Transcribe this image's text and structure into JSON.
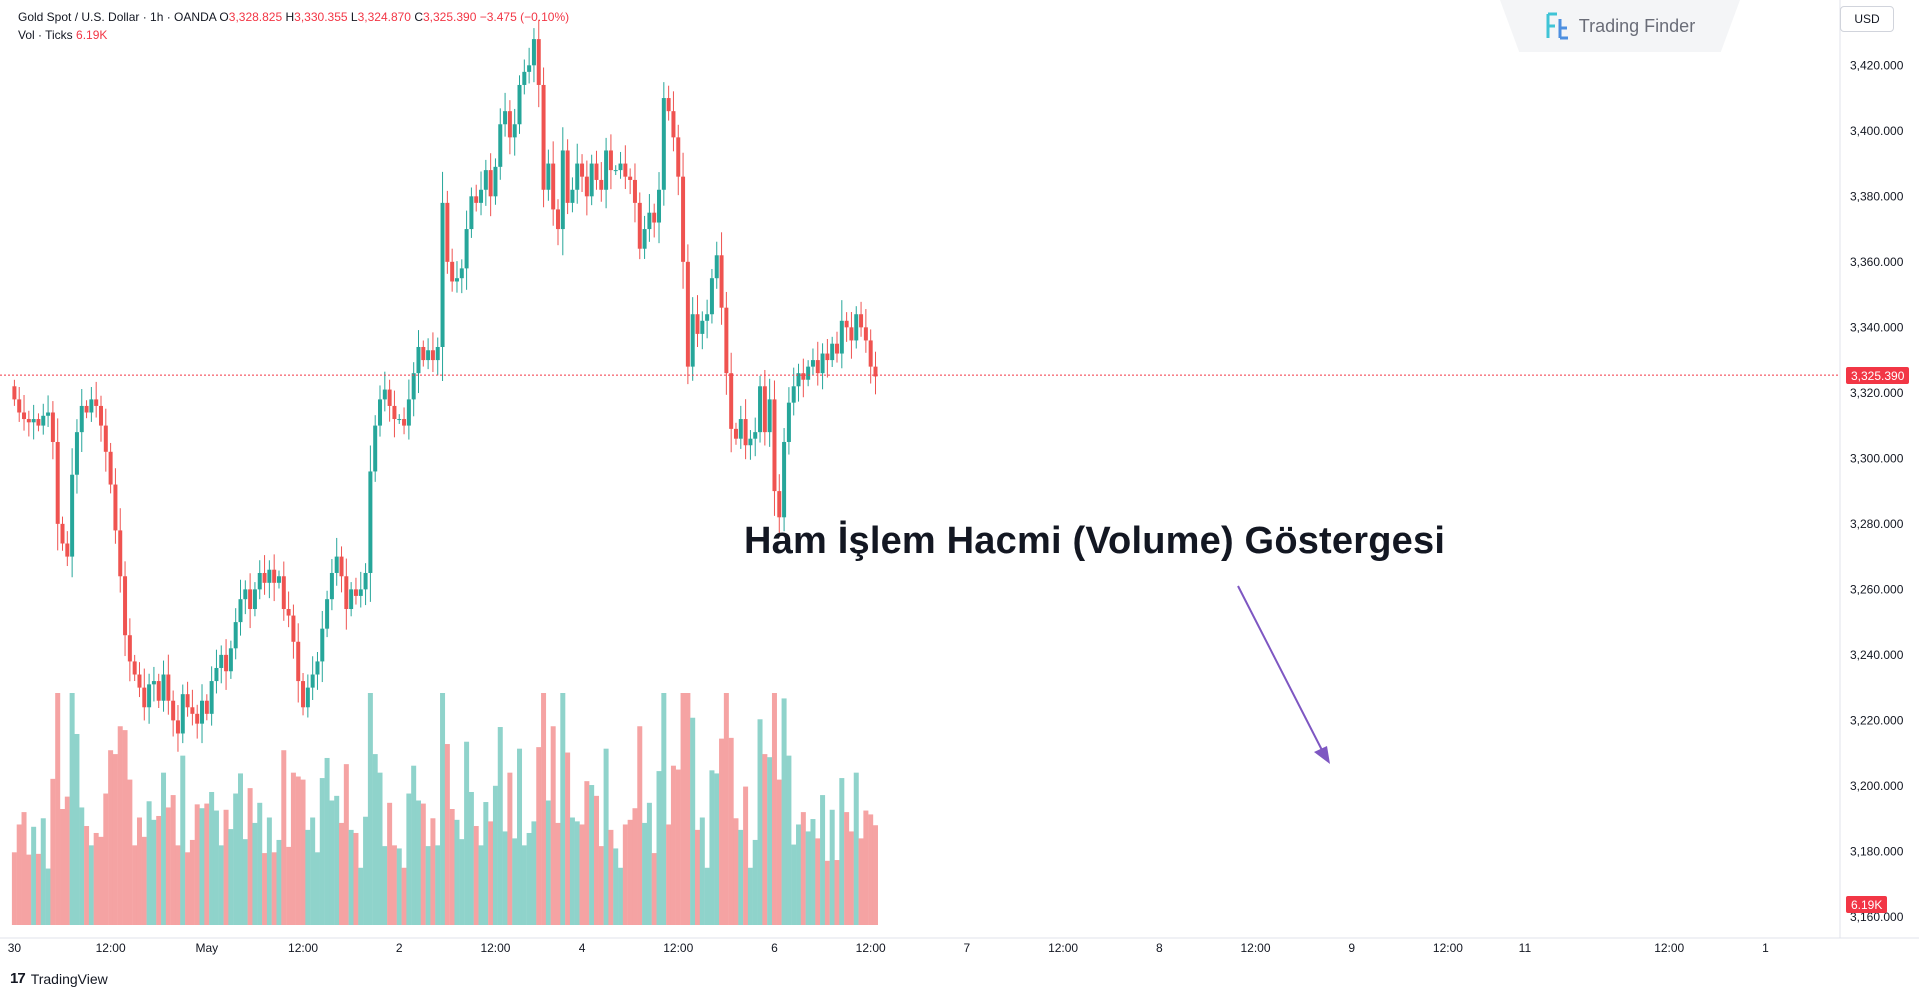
{
  "legend": {
    "symbol": "Gold Spot / U.S. Dollar · 1h · OANDA",
    "o_k": "O",
    "o": "3,328.825",
    "h_k": "H",
    "h": "3,330.355",
    "l_k": "L",
    "l": "3,324.870",
    "c_k": "C",
    "c": "3,325.390",
    "change": "−3.475 (−0.10%)",
    "vol_label": "Vol · Ticks",
    "vol_value": "6.19K"
  },
  "brand": {
    "name": "Trading Finder",
    "icon": "tf-logo-icon"
  },
  "currency_button": "USD",
  "annotation": "Ham İşlem Hacmi (Volume) Göstergesi",
  "footer": {
    "logo": "17",
    "name": "TradingView"
  },
  "price_tag": "3,325.390",
  "volume_tag": "6.19K",
  "colors": {
    "up": "#26a69a",
    "down": "#ef5350",
    "vol_up": "#8fd3cb",
    "vol_down": "#f5a3a3",
    "price_line": "#f23645",
    "arrow": "#7e57c2"
  },
  "chart_data": {
    "type": "candlestick",
    "title": "Gold Spot / U.S. Dollar · 1h · OANDA",
    "y_axis": {
      "ticks": [
        "3,420.000",
        "3,400.000",
        "3,380.000",
        "3,360.000",
        "3,340.000",
        "3,320.000",
        "3,300.000",
        "3,280.000",
        "3,260.000",
        "3,240.000",
        "3,220.000",
        "3,200.000",
        "3,180.000",
        "3,160.000"
      ],
      "tick_values": [
        3420,
        3400,
        3380,
        3360,
        3340,
        3320,
        3300,
        3280,
        3260,
        3240,
        3220,
        3200,
        3180,
        3160
      ],
      "range": [
        3156,
        3432
      ]
    },
    "x_axis": {
      "labels": [
        "30",
        "12:00",
        "May",
        "12:00",
        "2",
        "12:00",
        "4",
        "12:00",
        "6",
        "12:00",
        "7",
        "12:00",
        "8",
        "12:00",
        "9",
        "12:00",
        "11",
        "12:00",
        "1"
      ],
      "label_bar_index": [
        0,
        20,
        40,
        60,
        80,
        100,
        118,
        138,
        158,
        178,
        198,
        218,
        238,
        258,
        278,
        298,
        314,
        344,
        364
      ]
    },
    "last_price": 3325.39,
    "closes": [
      3318,
      3314,
      3312,
      3311,
      3312,
      3310,
      3313,
      3314,
      3305,
      3280,
      3274,
      3270,
      3295,
      3308,
      3316,
      3314,
      3318,
      3316,
      3310,
      3302,
      3292,
      3278,
      3264,
      3246,
      3238,
      3234,
      3230,
      3224,
      3231,
      3232,
      3226,
      3234,
      3226,
      3220,
      3216,
      3228,
      3224,
      3222,
      3219,
      3226,
      3222,
      3232,
      3236,
      3240,
      3235,
      3242,
      3250,
      3257,
      3260,
      3254,
      3260,
      3265,
      3262,
      3266,
      3262,
      3264,
      3254,
      3252,
      3244,
      3232,
      3224,
      3230,
      3234,
      3238,
      3248,
      3257,
      3265,
      3270,
      3264,
      3254,
      3260,
      3258,
      3260,
      3265,
      3296,
      3310,
      3318,
      3321,
      3316,
      3312,
      3312,
      3310,
      3318,
      3326,
      3334,
      3330,
      3333,
      3330,
      3334,
      3378,
      3360,
      3354,
      3355,
      3358,
      3370,
      3380,
      3378,
      3382,
      3388,
      3380,
      3389,
      3402,
      3406,
      3398,
      3402,
      3414,
      3418,
      3420,
      3428,
      3414,
      3382,
      3390,
      3376,
      3370,
      3394,
      3378,
      3382,
      3390,
      3386,
      3380,
      3390,
      3385,
      3382,
      3394,
      3388,
      3388,
      3390,
      3386,
      3385,
      3378,
      3364,
      3370,
      3375,
      3372,
      3382,
      3410,
      3406,
      3398,
      3386,
      3360,
      3328,
      3344,
      3338,
      3342,
      3344,
      3355,
      3362,
      3346,
      3326,
      3309,
      3306,
      3312,
      3304,
      3306,
      3308,
      3322,
      3308,
      3318,
      3290,
      3282,
      3305,
      3317,
      3322,
      3326,
      3324,
      3328,
      3330,
      3326,
      3332,
      3330,
      3335,
      3332,
      3342,
      3340,
      3336,
      3344,
      3340,
      3336,
      3328,
      3325
    ],
    "volume": {
      "label": "Vol · Ticks",
      "last": "6.19K"
    }
  }
}
